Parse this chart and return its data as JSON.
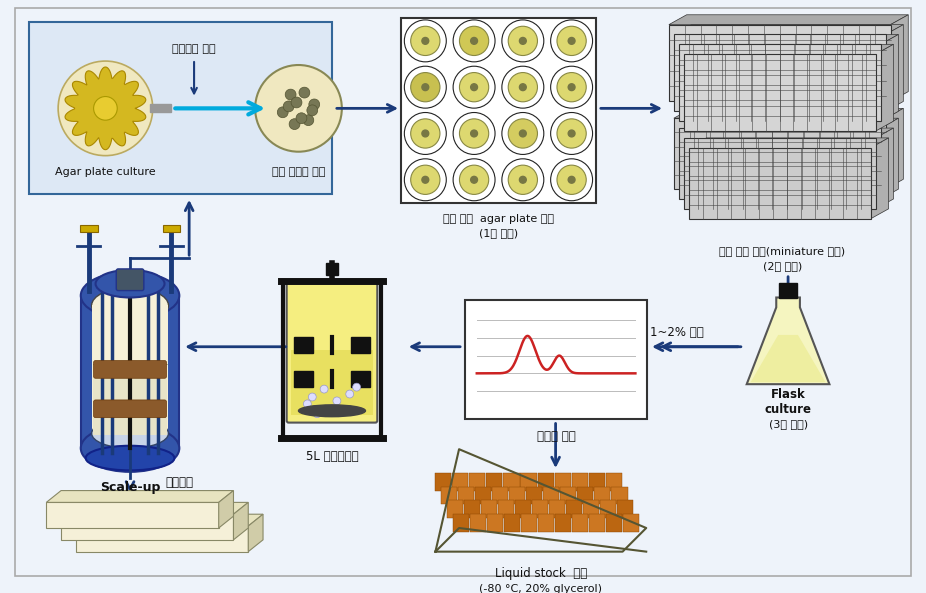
{
  "bg_color": "#eef3fa",
  "border_color": "#999999",
  "arrow_color": "#1a3a7a",
  "box1_bg": "#ddeeff",
  "box1_border": "#336699",
  "labels": {
    "wonhyung": "원형질체 분리",
    "agar_culture": "Agar plate culture",
    "danil_colony": "단일 콜로니 획득",
    "agar_plate_baeyang": "단일 균주  agar plate 배양",
    "first_selection": "(1차 선별)",
    "miniature": "단일 균주 배양(miniature 배양)",
    "second_selection": "(2차 선별)",
    "flask_culture": "Flask\nculture",
    "third_selection": "(3차 선별)",
    "selection_pct": "1~2% 선별",
    "polysaccharide": "다당체 분석",
    "bioreactor": "5L 발효기배양",
    "scale_up": "Scale-up",
    "solid_culture": "고체배양",
    "liquid_stock": "Liquid stock  보관",
    "liquid_stock2": "(-80 °C, 20% glycerol)"
  }
}
